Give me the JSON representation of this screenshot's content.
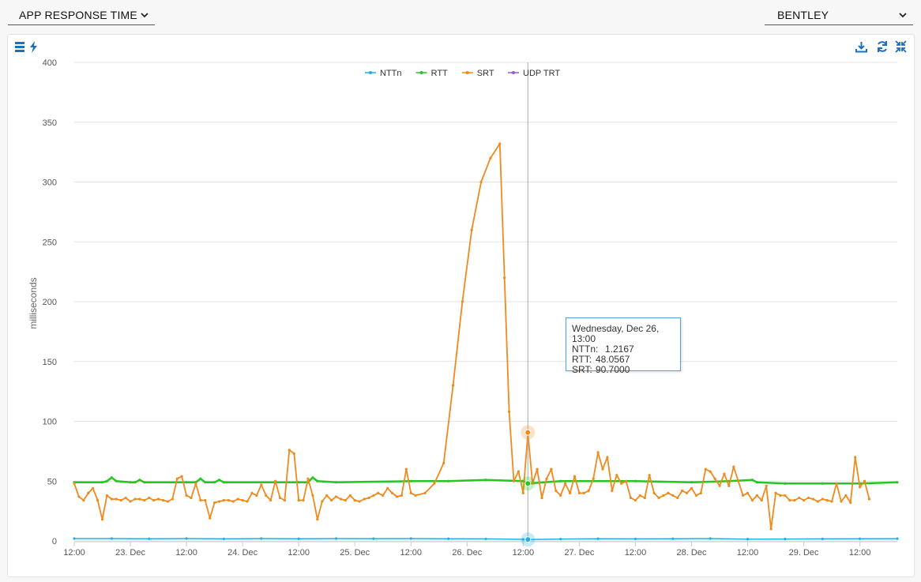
{
  "selectors": {
    "metric": "APP RESPONSE TIME",
    "site": "BENTLEY"
  },
  "toolbar": {
    "left_icons": [
      "menu-icon",
      "lightning-icon"
    ],
    "right_icons": [
      "download-icon",
      "refresh-icon",
      "collapse-icon"
    ]
  },
  "colors": {
    "ntt": "#1fb0e8",
    "rtt": "#22c81e",
    "srt": "#f08a1c",
    "udp": "#9b59d0",
    "tooltip_border": "#4fa3e0"
  },
  "tooltip": {
    "title": "Wednesday, Dec 26, 13:00",
    "rows": [
      {
        "label": "NTTn:",
        "value": "1.2167"
      },
      {
        "label": "RTT:",
        "value": "48.0567"
      },
      {
        "label": "SRT:",
        "value": "90.7000"
      }
    ]
  },
  "chart_data": {
    "type": "line",
    "ylabel": "milliseconds",
    "ylim": [
      0,
      400
    ],
    "yticks": [
      0,
      50,
      100,
      150,
      200,
      250,
      300,
      350,
      400
    ],
    "xlim": [
      0,
      176
    ],
    "x_unit": "hours since 22 Dec 12:00",
    "xticks": [
      {
        "x": 0,
        "label": "12:00"
      },
      {
        "x": 12,
        "label": "23. Dec"
      },
      {
        "x": 24,
        "label": "12:00"
      },
      {
        "x": 36,
        "label": "24. Dec"
      },
      {
        "x": 48,
        "label": "12:00"
      },
      {
        "x": 60,
        "label": "25. Dec"
      },
      {
        "x": 72,
        "label": "12:00"
      },
      {
        "x": 84,
        "label": "26. Dec"
      },
      {
        "x": 96,
        "label": "12:00"
      },
      {
        "x": 108,
        "label": "27. Dec"
      },
      {
        "x": 120,
        "label": "12:00"
      },
      {
        "x": 132,
        "label": "28. Dec"
      },
      {
        "x": 144,
        "label": "12:00"
      },
      {
        "x": 156,
        "label": "29. Dec"
      },
      {
        "x": 168,
        "label": "12:00"
      }
    ],
    "legend_position": "top-center",
    "crosshair_x": 97,
    "series": [
      {
        "name": "NTTn",
        "key": "ntt",
        "points": [
          [
            0,
            2
          ],
          [
            8,
            2
          ],
          [
            16,
            1.8
          ],
          [
            24,
            2
          ],
          [
            32,
            1.7
          ],
          [
            40,
            2
          ],
          [
            48,
            1.8
          ],
          [
            56,
            2
          ],
          [
            64,
            1.9
          ],
          [
            72,
            2
          ],
          [
            80,
            1.8
          ],
          [
            88,
            1.7
          ],
          [
            96,
            1.3
          ],
          [
            97,
            1.2
          ],
          [
            104,
            1.6
          ],
          [
            112,
            1.8
          ],
          [
            120,
            1.7
          ],
          [
            128,
            1.8
          ],
          [
            136,
            2
          ],
          [
            144,
            1.5
          ],
          [
            152,
            1.6
          ],
          [
            160,
            1.7
          ],
          [
            168,
            1.8
          ],
          [
            176,
            1.9
          ]
        ]
      },
      {
        "name": "RTT",
        "key": "rtt",
        "points": [
          [
            0,
            49
          ],
          [
            6,
            49
          ],
          [
            7,
            50
          ],
          [
            8,
            53
          ],
          [
            9,
            50
          ],
          [
            12,
            49
          ],
          [
            13,
            49
          ],
          [
            14,
            51
          ],
          [
            15,
            49
          ],
          [
            24,
            49
          ],
          [
            26,
            49
          ],
          [
            27,
            52
          ],
          [
            28,
            49
          ],
          [
            30,
            49
          ],
          [
            31,
            51
          ],
          [
            32,
            49
          ],
          [
            48,
            49
          ],
          [
            50,
            49
          ],
          [
            51,
            53
          ],
          [
            52,
            50
          ],
          [
            56,
            49
          ],
          [
            72,
            50
          ],
          [
            80,
            50
          ],
          [
            88,
            51
          ],
          [
            96,
            50
          ],
          [
            97,
            48
          ],
          [
            104,
            50
          ],
          [
            120,
            50
          ],
          [
            132,
            49
          ],
          [
            140,
            50
          ],
          [
            145,
            51
          ],
          [
            146,
            49
          ],
          [
            152,
            48
          ],
          [
            160,
            48
          ],
          [
            168,
            48
          ],
          [
            176,
            49
          ]
        ]
      },
      {
        "name": "SRT",
        "key": "srt",
        "points": [
          [
            0,
            48
          ],
          [
            1,
            37
          ],
          [
            2,
            34
          ],
          [
            3,
            40
          ],
          [
            4,
            44
          ],
          [
            5,
            34
          ],
          [
            6,
            18
          ],
          [
            7,
            38
          ],
          [
            8,
            35
          ],
          [
            9,
            35
          ],
          [
            10,
            34
          ],
          [
            11,
            36
          ],
          [
            12,
            33
          ],
          [
            13,
            35
          ],
          [
            14,
            35
          ],
          [
            15,
            34
          ],
          [
            16,
            36
          ],
          [
            17,
            34
          ],
          [
            18,
            35
          ],
          [
            19,
            34
          ],
          [
            20,
            33
          ],
          [
            21,
            35
          ],
          [
            22,
            52
          ],
          [
            23,
            54
          ],
          [
            24,
            38
          ],
          [
            25,
            36
          ],
          [
            26,
            48
          ],
          [
            27,
            34
          ],
          [
            28,
            34
          ],
          [
            29,
            19
          ],
          [
            30,
            32
          ],
          [
            31,
            33
          ],
          [
            32,
            34
          ],
          [
            33,
            34
          ],
          [
            34,
            33
          ],
          [
            35,
            35
          ],
          [
            36,
            34
          ],
          [
            37,
            33
          ],
          [
            38,
            40
          ],
          [
            39,
            38
          ],
          [
            40,
            47
          ],
          [
            41,
            38
          ],
          [
            42,
            34
          ],
          [
            43,
            50
          ],
          [
            44,
            36
          ],
          [
            45,
            34
          ],
          [
            46,
            76
          ],
          [
            47,
            73
          ],
          [
            48,
            34
          ],
          [
            49,
            34
          ],
          [
            50,
            52
          ],
          [
            51,
            38
          ],
          [
            52,
            18
          ],
          [
            53,
            33
          ],
          [
            54,
            38
          ],
          [
            55,
            34
          ],
          [
            56,
            37
          ],
          [
            57,
            35
          ],
          [
            58,
            34
          ],
          [
            59,
            38
          ],
          [
            60,
            34
          ],
          [
            61,
            33
          ],
          [
            62,
            35
          ],
          [
            63,
            36
          ],
          [
            64,
            38
          ],
          [
            65,
            40
          ],
          [
            66,
            38
          ],
          [
            67,
            44
          ],
          [
            68,
            40
          ],
          [
            69,
            37
          ],
          [
            70,
            38
          ],
          [
            71,
            60
          ],
          [
            72,
            40
          ],
          [
            73,
            38
          ],
          [
            75,
            40
          ],
          [
            77,
            48
          ],
          [
            79,
            65
          ],
          [
            81,
            130
          ],
          [
            83,
            200
          ],
          [
            85,
            260
          ],
          [
            87,
            300
          ],
          [
            89,
            320
          ],
          [
            91,
            332
          ],
          [
            92,
            220
          ],
          [
            93,
            108
          ],
          [
            94,
            50
          ],
          [
            95,
            58
          ],
          [
            96,
            40
          ],
          [
            97,
            90
          ],
          [
            98,
            48
          ],
          [
            99,
            60
          ],
          [
            100,
            36
          ],
          [
            101,
            52
          ],
          [
            102,
            60
          ],
          [
            103,
            42
          ],
          [
            104,
            38
          ],
          [
            105,
            48
          ],
          [
            106,
            40
          ],
          [
            107,
            54
          ],
          [
            108,
            40
          ],
          [
            109,
            40
          ],
          [
            110,
            42
          ],
          [
            111,
            52
          ],
          [
            112,
            74
          ],
          [
            113,
            60
          ],
          [
            114,
            70
          ],
          [
            115,
            42
          ],
          [
            116,
            55
          ],
          [
            117,
            48
          ],
          [
            118,
            50
          ],
          [
            119,
            36
          ],
          [
            120,
            34
          ],
          [
            121,
            38
          ],
          [
            122,
            36
          ],
          [
            123,
            55
          ],
          [
            124,
            40
          ],
          [
            125,
            36
          ],
          [
            126,
            38
          ],
          [
            127,
            40
          ],
          [
            128,
            38
          ],
          [
            129,
            36
          ],
          [
            130,
            42
          ],
          [
            131,
            40
          ],
          [
            132,
            44
          ],
          [
            133,
            38
          ],
          [
            134,
            40
          ],
          [
            135,
            60
          ],
          [
            136,
            58
          ],
          [
            137,
            52
          ],
          [
            138,
            46
          ],
          [
            139,
            56
          ],
          [
            140,
            46
          ],
          [
            141,
            62
          ],
          [
            142,
            50
          ],
          [
            143,
            38
          ],
          [
            144,
            40
          ],
          [
            145,
            34
          ],
          [
            146,
            38
          ],
          [
            147,
            34
          ],
          [
            148,
            46
          ],
          [
            149,
            10
          ],
          [
            150,
            40
          ],
          [
            151,
            38
          ],
          [
            152,
            38
          ],
          [
            153,
            34
          ],
          [
            154,
            34
          ],
          [
            155,
            36
          ],
          [
            156,
            34
          ],
          [
            157,
            36
          ],
          [
            158,
            35
          ],
          [
            159,
            33
          ],
          [
            160,
            35
          ],
          [
            161,
            34
          ],
          [
            162,
            33
          ],
          [
            163,
            48
          ],
          [
            164,
            33
          ],
          [
            165,
            38
          ],
          [
            166,
            32
          ],
          [
            167,
            70
          ],
          [
            168,
            45
          ],
          [
            169,
            50
          ],
          [
            170,
            35
          ]
        ]
      },
      {
        "name": "UDP TRT",
        "key": "udp",
        "points": []
      }
    ]
  }
}
